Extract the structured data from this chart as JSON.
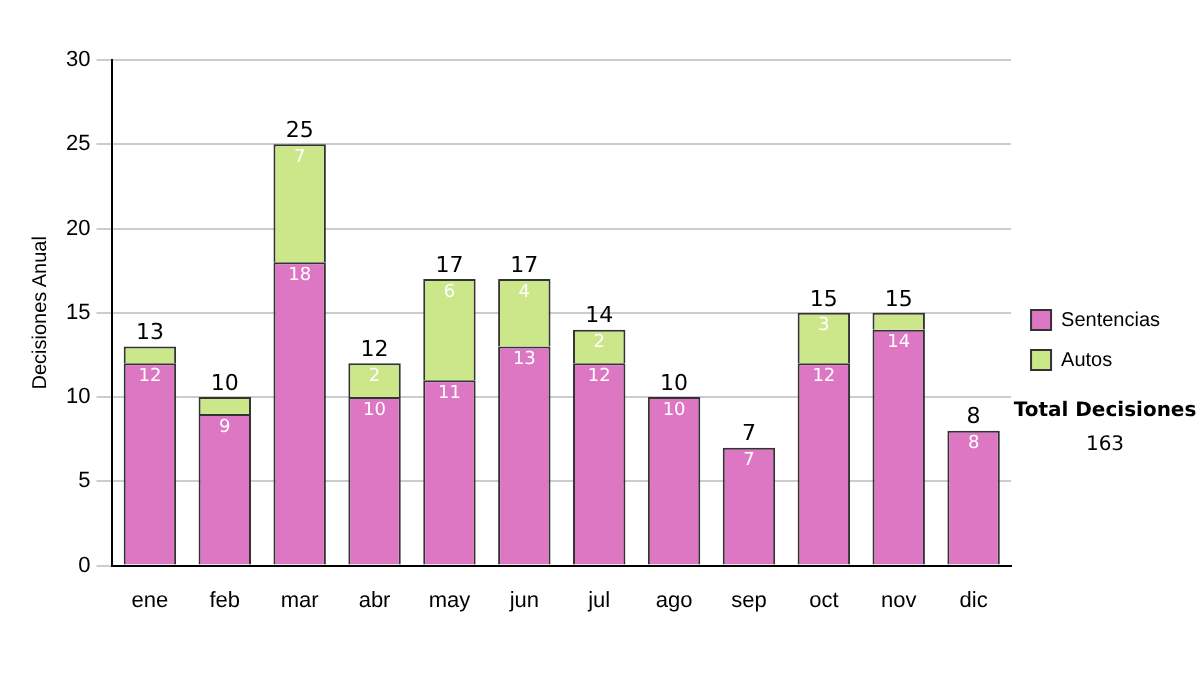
{
  "chart_data": {
    "type": "bar",
    "stacked": true,
    "ylabel": "Decisiones Anual",
    "categories": [
      "ene",
      "feb",
      "mar",
      "abr",
      "may",
      "jun",
      "jul",
      "ago",
      "sep",
      "oct",
      "nov",
      "dic"
    ],
    "series": [
      {
        "name": "Sentencias",
        "color": "#dd77c4",
        "values": [
          12,
          9,
          18,
          10,
          11,
          13,
          12,
          10,
          7,
          12,
          14,
          8
        ],
        "value_labels": [
          "12",
          "9",
          "18",
          "10",
          "11",
          "13",
          "12",
          "10",
          "7",
          "12",
          "14",
          "8"
        ]
      },
      {
        "name": "Autos",
        "color": "#cce68a",
        "values": [
          1,
          1,
          7,
          2,
          6,
          4,
          2,
          0,
          0,
          3,
          1,
          0
        ],
        "value_labels": [
          null,
          null,
          "7",
          "2",
          "6",
          "4",
          "2",
          null,
          null,
          "3",
          null,
          null
        ]
      }
    ],
    "totals": [
      "13",
      "10",
      "25",
      "12",
      "17",
      "17",
      "14",
      "10",
      "7",
      "15",
      "15",
      "8"
    ],
    "ylim": [
      0,
      30
    ],
    "yticks": [
      0,
      5,
      10,
      15,
      20,
      25,
      30
    ],
    "grid": "y",
    "legend": "right",
    "annotations": [
      "Total Decisiones",
      "163"
    ]
  }
}
